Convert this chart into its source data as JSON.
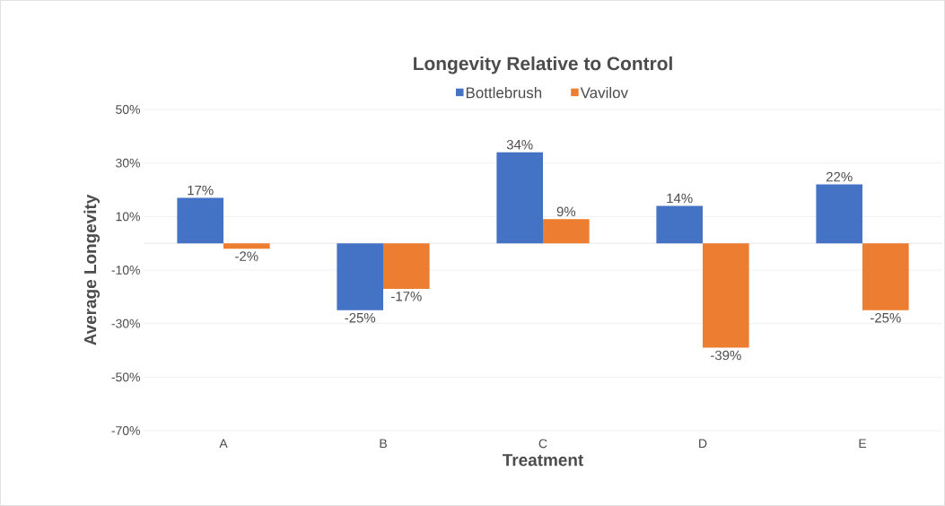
{
  "chart_data": {
    "type": "bar",
    "title": "Longevity Relative to Control",
    "xlabel": "Treatment",
    "ylabel": "Average Longevity",
    "categories": [
      "A",
      "B",
      "C",
      "D",
      "E"
    ],
    "series": [
      {
        "name": "Bottlebrush",
        "color": "#4472c4",
        "values": [
          17,
          -25,
          34,
          14,
          22
        ],
        "value_labels": [
          "17%",
          "-25%",
          "34%",
          "14%",
          "22%"
        ]
      },
      {
        "name": "Vavilov",
        "color": "#ed7d31",
        "values": [
          -2,
          -17,
          9,
          -39,
          -25
        ],
        "value_labels": [
          "-2%",
          "-17%",
          "9%",
          "-39%",
          "-25%"
        ]
      }
    ],
    "ylim": [
      -70,
      50
    ],
    "yticks": [
      {
        "value": -70,
        "label": "-70%"
      },
      {
        "value": -50,
        "label": "-50%"
      },
      {
        "value": -30,
        "label": "-30%"
      },
      {
        "value": -10,
        "label": "-10%"
      },
      {
        "value": 10,
        "label": "10%"
      },
      {
        "value": 30,
        "label": "30%"
      },
      {
        "value": 50,
        "label": "50%"
      }
    ],
    "grid": "y",
    "legend": "top"
  }
}
